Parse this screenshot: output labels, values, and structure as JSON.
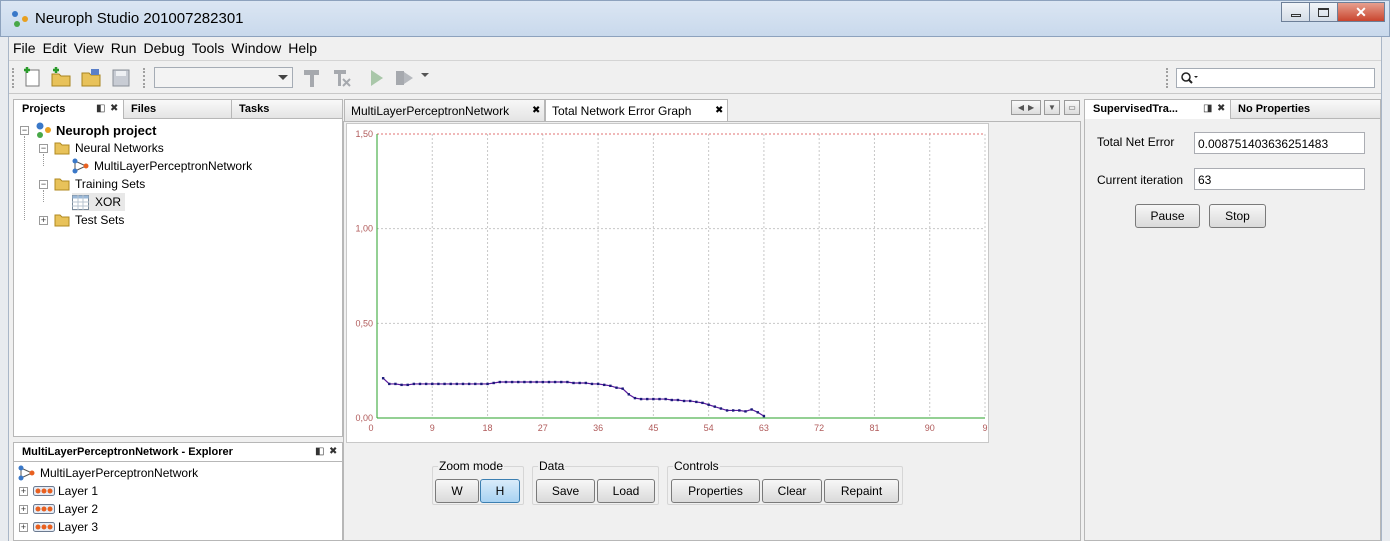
{
  "window": {
    "title": "Neuroph Studio 201007282301",
    "minimize_label": "▭",
    "maximize_label": "▢",
    "close_label": "✕"
  },
  "menu": [
    "File",
    "Edit",
    "View",
    "Run",
    "Debug",
    "Tools",
    "Window",
    "Help"
  ],
  "toolbar": {
    "config_combo_value": "",
    "search_placeholder": ""
  },
  "project_panel": {
    "tabs": [
      "Projects",
      "Files",
      "Tasks"
    ],
    "tree": {
      "root": "Neuroph project",
      "neural_networks": "Neural Networks",
      "network": "MultiLayerPerceptronNetwork",
      "training_sets": "Training Sets",
      "xor": "XOR",
      "test_sets": "Test Sets"
    }
  },
  "explorer_panel": {
    "title": "MultiLayerPerceptronNetwork - Explorer",
    "root": "MultiLayerPerceptronNetwork",
    "layers": [
      "Layer 1",
      "Layer 2",
      "Layer 3"
    ]
  },
  "editor": {
    "tabs": [
      "MultiLayerPerceptronNetwork",
      "Total Network Error Graph"
    ]
  },
  "chart_data": {
    "type": "line",
    "y_ticks": [
      "0,00",
      "0,50",
      "1,00",
      "1,50"
    ],
    "x_ticks": [
      "0",
      "9",
      "18",
      "27",
      "36",
      "45",
      "54",
      "63",
      "72",
      "81",
      "90",
      "9"
    ],
    "xlim": [
      0,
      99
    ],
    "ylim": [
      0,
      1.5
    ],
    "grid": true,
    "limit_line_y": 1.5,
    "line_color": "#5a1a9e",
    "point_color": "#1a1a7a",
    "axis_color": "#2aa02a",
    "tick_color": "#b05a5a",
    "series": [
      {
        "x": [
          1,
          2,
          3,
          4,
          5,
          6,
          7,
          8,
          9,
          10,
          11,
          12,
          13,
          14,
          15,
          16,
          17,
          18,
          19,
          20,
          21,
          22,
          23,
          24,
          25,
          26,
          27,
          28,
          29,
          30,
          31,
          32,
          33,
          34,
          35,
          36,
          37,
          38,
          39,
          40,
          41,
          42,
          43,
          44,
          45,
          46,
          47,
          48,
          49,
          50,
          51,
          52,
          53,
          54,
          55,
          56,
          57,
          58,
          59,
          60,
          61,
          62,
          63
        ],
        "y": [
          0.21,
          0.18,
          0.18,
          0.175,
          0.175,
          0.18,
          0.18,
          0.18,
          0.18,
          0.18,
          0.18,
          0.18,
          0.18,
          0.18,
          0.18,
          0.18,
          0.18,
          0.18,
          0.185,
          0.19,
          0.19,
          0.19,
          0.19,
          0.19,
          0.19,
          0.19,
          0.19,
          0.19,
          0.19,
          0.19,
          0.19,
          0.185,
          0.185,
          0.185,
          0.18,
          0.18,
          0.175,
          0.17,
          0.16,
          0.155,
          0.125,
          0.105,
          0.1,
          0.1,
          0.1,
          0.1,
          0.1,
          0.095,
          0.095,
          0.09,
          0.09,
          0.085,
          0.08,
          0.07,
          0.06,
          0.05,
          0.04,
          0.04,
          0.04,
          0.035,
          0.045,
          0.03,
          0.01
        ]
      }
    ]
  },
  "controls": {
    "zoom_group": "Zoom mode",
    "zoom_w": "W",
    "zoom_h": "H",
    "data_group": "Data",
    "save": "Save",
    "load": "Load",
    "controls_group": "Controls",
    "properties": "Properties",
    "clear": "Clear",
    "repaint": "Repaint"
  },
  "right_panel": {
    "tabs": [
      "SupervisedTra...",
      "No Properties"
    ],
    "total_net_error_label": "Total Net Error",
    "total_net_error_value": "0.008751403636251483",
    "current_iteration_label": "Current iteration",
    "current_iteration_value": "63",
    "pause": "Pause",
    "stop": "Stop"
  }
}
